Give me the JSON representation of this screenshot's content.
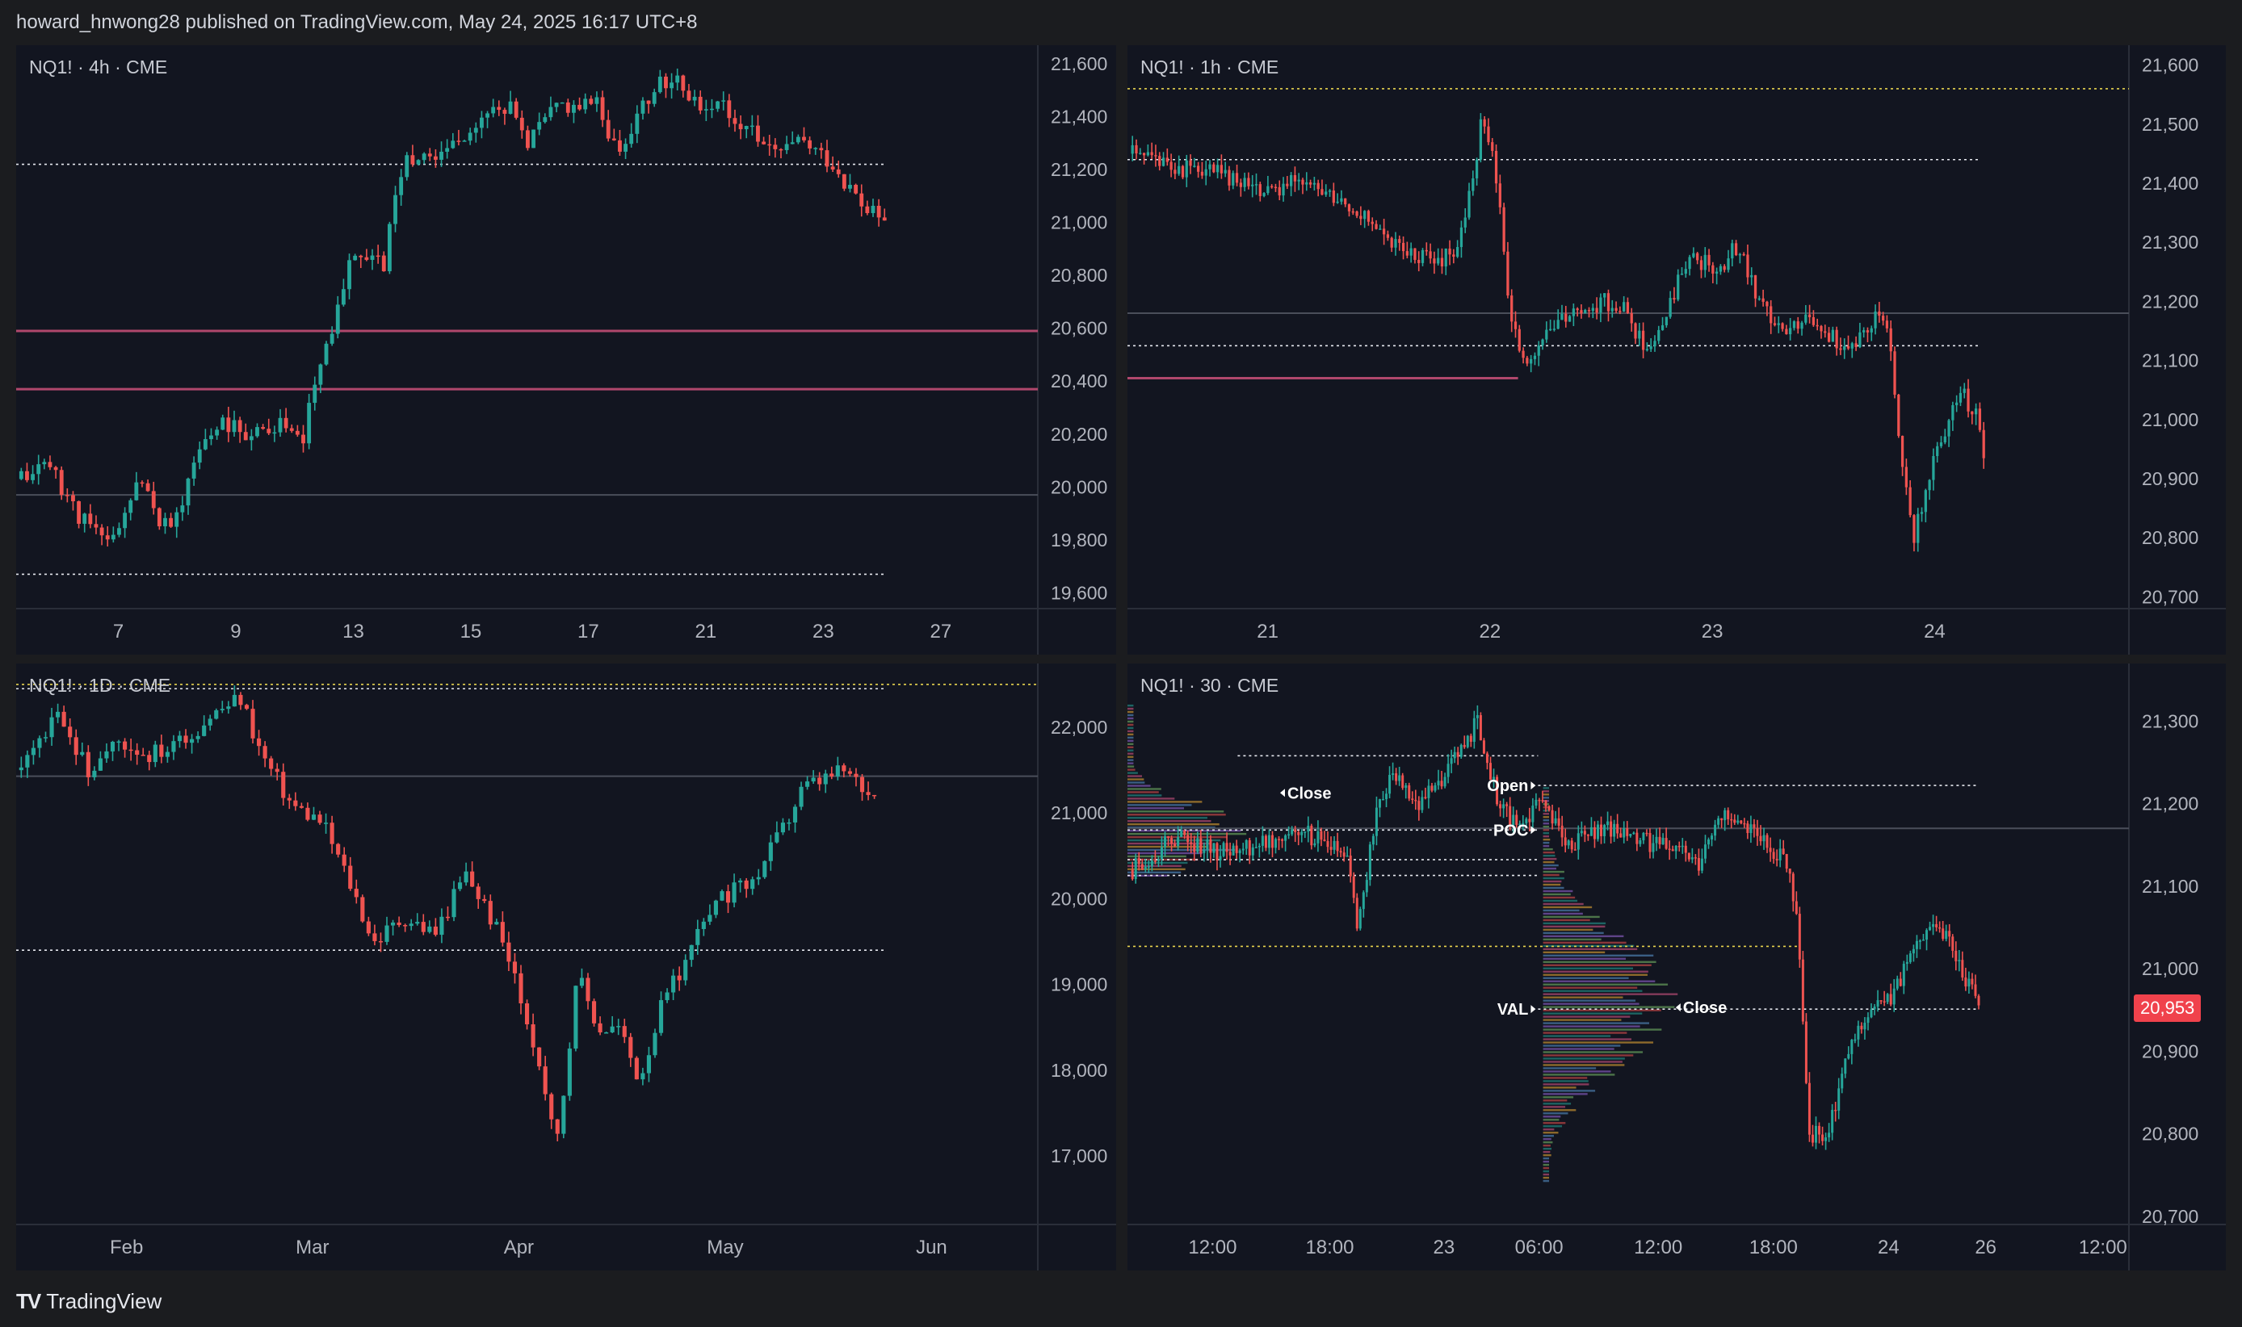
{
  "header": {
    "publish_info": "howard_hnwong28 published on TradingView.com, May 24, 2025 16:17 UTC+8"
  },
  "footer": {
    "brand": "TradingView"
  },
  "colors": {
    "up": "#26a69a",
    "down": "#ef5350",
    "background": "#121520",
    "grid_line": "#2a2e39",
    "dotted_white": "#e6e8ee",
    "dotted_yellow": "#e8d44d",
    "level_pink": "#b0476c",
    "value_tag": "#f0424c"
  },
  "panels": [
    {
      "title": "NQ1! · 4h · CME",
      "y_ticks": [
        "21,600",
        "21,400",
        "21,200",
        "21,000",
        "20,800",
        "20,600",
        "20,400",
        "20,200",
        "20,000",
        "19,800",
        "19,600"
      ],
      "x_ticks": [
        "7",
        "9",
        "13",
        "15",
        "17",
        "21",
        "23",
        "27"
      ]
    },
    {
      "title": "NQ1! · 1h · CME",
      "y_ticks": [
        "21,600",
        "21,500",
        "21,400",
        "21,300",
        "21,200",
        "21,100",
        "21,000",
        "20,900",
        "20,800",
        "20,700"
      ],
      "x_ticks": [
        "21",
        "22",
        "23",
        "24"
      ]
    },
    {
      "title": "NQ1! · 1D · CME",
      "y_ticks": [
        "22,000",
        "21,000",
        "20,000",
        "19,000",
        "18,000",
        "17,000"
      ],
      "x_ticks": [
        "Feb",
        "Mar",
        "Apr",
        "May",
        "Jun"
      ]
    },
    {
      "title": "NQ1! · 30 · CME",
      "y_ticks": [
        "21,300",
        "21,200",
        "21,100",
        "21,000",
        "20,900",
        "20,800",
        "20,700"
      ],
      "x_ticks": [
        "12:00",
        "18:00",
        "23",
        "06:00",
        "12:00",
        "18:00",
        "24",
        "26",
        "12:00"
      ],
      "profile_labels": {
        "close_1": "Close",
        "open": "Open",
        "poc": "POC",
        "val": "VAL",
        "close_2": "Close"
      },
      "last_price": "20,953"
    }
  ],
  "chart_data": [
    {
      "type": "candlestick",
      "title": "NQ1! · 4h · CME",
      "ylim": [
        19540,
        21640
      ],
      "xlim": [
        0,
        100
      ],
      "x_ticks": [
        {
          "label": "7",
          "x": 10
        },
        {
          "label": "9",
          "x": 21.5
        },
        {
          "label": "13",
          "x": 33
        },
        {
          "label": "15",
          "x": 44.5
        },
        {
          "label": "17",
          "x": 56
        },
        {
          "label": "21",
          "x": 67.5
        },
        {
          "label": "23",
          "x": 79
        },
        {
          "label": "27",
          "x": 90.5
        }
      ],
      "y_ticks": [
        21600,
        21400,
        21200,
        21000,
        20800,
        20600,
        20400,
        20200,
        20000,
        19800,
        19600
      ],
      "levels": [
        {
          "value": 21220,
          "style": "dotted-white",
          "x_from": 0,
          "x_to": 85
        },
        {
          "value": 20590,
          "style": "solid-pink",
          "x_from": 0,
          "x_to": 100
        },
        {
          "value": 20370,
          "style": "solid-pink",
          "x_from": 0,
          "x_to": 100
        },
        {
          "value": 19970,
          "style": "solid-grey",
          "x_from": 0,
          "x_to": 100
        },
        {
          "value": 19670,
          "style": "dotted-white",
          "x_from": 0,
          "x_to": 85
        }
      ],
      "anchors": [
        [
          0.5,
          20030
        ],
        [
          3,
          20100
        ],
        [
          6,
          19900
        ],
        [
          9,
          19780
        ],
        [
          12,
          20020
        ],
        [
          15,
          19820
        ],
        [
          18,
          20150
        ],
        [
          20,
          20250
        ],
        [
          23,
          20200
        ],
        [
          26,
          20250
        ],
        [
          28,
          20150
        ],
        [
          29,
          20380
        ],
        [
          31,
          20620
        ],
        [
          33,
          20900
        ],
        [
          36,
          20850
        ],
        [
          38,
          21250
        ],
        [
          41,
          21250
        ],
        [
          44,
          21350
        ],
        [
          48,
          21450
        ],
        [
          50,
          21300
        ],
        [
          53,
          21450
        ],
        [
          57,
          21450
        ],
        [
          59,
          21250
        ],
        [
          61,
          21450
        ],
        [
          64,
          21550
        ],
        [
          67,
          21450
        ],
        [
          69,
          21450
        ],
        [
          72,
          21350
        ],
        [
          74,
          21250
        ],
        [
          77,
          21300
        ],
        [
          80,
          21220
        ],
        [
          83,
          21050
        ],
        [
          85,
          21000
        ]
      ],
      "seed": 11
    },
    {
      "type": "candlestick",
      "title": "NQ1! · 1h · CME",
      "ylim": [
        20680,
        21620
      ],
      "xlim": [
        0,
        100
      ],
      "x_ticks": [
        {
          "label": "21",
          "x": 14
        },
        {
          "label": "22",
          "x": 36.2
        },
        {
          "label": "23",
          "x": 58.4
        },
        {
          "label": "24",
          "x": 80.6
        }
      ],
      "y_ticks": [
        21600,
        21500,
        21400,
        21300,
        21200,
        21100,
        21000,
        20900,
        20800,
        20700
      ],
      "levels": [
        {
          "value": 21560,
          "style": "dotted-yellow",
          "x_from": 0,
          "x_to": 100
        },
        {
          "value": 21440,
          "style": "dotted-white",
          "x_from": 0,
          "x_to": 85
        },
        {
          "value": 21180,
          "style": "solid-grey",
          "x_from": 0,
          "x_to": 100
        },
        {
          "value": 21125,
          "style": "dotted-white",
          "x_from": 0,
          "x_to": 85
        },
        {
          "value": 21070,
          "style": "solid-pink",
          "x_from": 0,
          "x_to": 39
        }
      ],
      "anchors": [
        [
          0.5,
          21450
        ],
        [
          4,
          21430
        ],
        [
          8,
          21420
        ],
        [
          12,
          21400
        ],
        [
          15,
          21380
        ],
        [
          17,
          21420
        ],
        [
          20,
          21380
        ],
        [
          23,
          21360
        ],
        [
          26,
          21300
        ],
        [
          29,
          21280
        ],
        [
          31,
          21260
        ],
        [
          33,
          21300
        ],
        [
          34.5,
          21400
        ],
        [
          35.5,
          21520
        ],
        [
          37,
          21400
        ],
        [
          38,
          21200
        ],
        [
          39.5,
          21100
        ],
        [
          42,
          21150
        ],
        [
          45,
          21180
        ],
        [
          48,
          21200
        ],
        [
          50,
          21180
        ],
        [
          52,
          21100
        ],
        [
          53.5,
          21160
        ],
        [
          56,
          21280
        ],
        [
          59,
          21250
        ],
        [
          61,
          21300
        ],
        [
          63,
          21200
        ],
        [
          66,
          21150
        ],
        [
          68,
          21170
        ],
        [
          70,
          21140
        ],
        [
          72,
          21120
        ],
        [
          74,
          21150
        ],
        [
          75,
          21180
        ],
        [
          76,
          21160
        ],
        [
          77.5,
          20900
        ],
        [
          78.5,
          20800
        ],
        [
          80,
          20900
        ],
        [
          82,
          21000
        ],
        [
          83,
          21050
        ],
        [
          85,
          21000
        ],
        [
          85.5,
          20950
        ]
      ],
      "seed": 23
    },
    {
      "type": "candlestick",
      "title": "NQ1! · 1D · CME",
      "ylim": [
        16200,
        22650
      ],
      "xlim": [
        0,
        100
      ],
      "x_ticks": [
        {
          "label": "Feb",
          "x": 10.8
        },
        {
          "label": "Mar",
          "x": 29
        },
        {
          "label": "Apr",
          "x": 49.2
        },
        {
          "label": "May",
          "x": 69.4
        },
        {
          "label": "Jun",
          "x": 89.6
        }
      ],
      "y_ticks": [
        22000,
        21000,
        20000,
        19000,
        18000,
        17000
      ],
      "levels": [
        {
          "value": 22500,
          "style": "dotted-yellow",
          "x_from": 0,
          "x_to": 100
        },
        {
          "value": 22450,
          "style": "dotted-white",
          "x_from": 0,
          "x_to": 85
        },
        {
          "value": 21430,
          "style": "solid-grey",
          "x_from": 0,
          "x_to": 100
        },
        {
          "value": 19400,
          "style": "dotted-white",
          "x_from": 0,
          "x_to": 85
        }
      ],
      "anchors": [
        [
          0.5,
          21500
        ],
        [
          4,
          22100
        ],
        [
          7,
          21500
        ],
        [
          10,
          21850
        ],
        [
          13,
          21700
        ],
        [
          16,
          21800
        ],
        [
          19,
          22150
        ],
        [
          22,
          22350
        ],
        [
          24,
          21700
        ],
        [
          27,
          21100
        ],
        [
          30,
          20900
        ],
        [
          33,
          20100
        ],
        [
          35,
          19500
        ],
        [
          38,
          19800
        ],
        [
          41,
          19600
        ],
        [
          44,
          20300
        ],
        [
          46,
          19900
        ],
        [
          48,
          19400
        ],
        [
          51,
          18200
        ],
        [
          53,
          17200
        ],
        [
          55,
          19100
        ],
        [
          57,
          18500
        ],
        [
          59,
          18500
        ],
        [
          61,
          17900
        ],
        [
          63,
          18700
        ],
        [
          66,
          19400
        ],
        [
          69,
          20000
        ],
        [
          72,
          20200
        ],
        [
          75,
          20800
        ],
        [
          77,
          21300
        ],
        [
          79,
          21400
        ],
        [
          81,
          21500
        ],
        [
          83,
          21300
        ],
        [
          84,
          21100
        ]
      ],
      "seed": 37
    },
    {
      "type": "candlestick",
      "title": "NQ1! · 30 · CME",
      "ylim": [
        20690,
        21360
      ],
      "xlim": [
        0,
        100
      ],
      "x_ticks": [
        {
          "label": "12:00",
          "x": 8.5
        },
        {
          "label": "18:00",
          "x": 20.2
        },
        {
          "label": "23",
          "x": 31.6
        },
        {
          "label": "06:00",
          "x": 41.1
        },
        {
          "label": "12:00",
          "x": 53
        },
        {
          "label": "18:00",
          "x": 64.5
        },
        {
          "label": "24",
          "x": 76
        },
        {
          "label": "26",
          "x": 85.7
        },
        {
          "label": "12:00",
          "x": 97.4
        }
      ],
      "y_ticks": [
        21300,
        21200,
        21100,
        21000,
        20900,
        20800,
        20700
      ],
      "levels": [
        {
          "value": 21258,
          "style": "dotted-white",
          "x_from": 11,
          "x_to": 41
        },
        {
          "value": 21222,
          "style": "dotted-white",
          "x_from": 41,
          "x_to": 85
        },
        {
          "value": 21170,
          "style": "solid-grey",
          "x_from": 0,
          "x_to": 100
        },
        {
          "value": 21168,
          "style": "dotted-white",
          "x_from": 0,
          "x_to": 41
        },
        {
          "value": 21132,
          "style": "dotted-white",
          "x_from": 0,
          "x_to": 41
        },
        {
          "value": 21113,
          "style": "dotted-white",
          "x_from": 0,
          "x_to": 41
        },
        {
          "value": 21027,
          "style": "dotted-yellow",
          "x_from": 0,
          "x_to": 67
        },
        {
          "value": 20951,
          "style": "dotted-white",
          "x_from": 41,
          "x_to": 85
        }
      ],
      "profiles": [
        {
          "x_start": 0,
          "y_top": 21320,
          "y_bot": 21110,
          "max_width": 14,
          "poc": 21165
        },
        {
          "x_start": 41.5,
          "y_top": 21220,
          "y_bot": 20740,
          "max_width": 14,
          "poc": 20965
        }
      ],
      "profile_markers": [
        {
          "label": "Close",
          "x": 15,
          "value": 21213,
          "side": "left"
        },
        {
          "label": "Open",
          "x": 41,
          "value": 21222,
          "side": "right"
        },
        {
          "label": "POC",
          "x": 41,
          "value": 21168,
          "side": "right"
        },
        {
          "label": "VAL",
          "x": 41,
          "value": 20951,
          "side": "right"
        },
        {
          "label": "Close",
          "x": 54.5,
          "value": 20953,
          "side": "left"
        }
      ],
      "anchors": [
        [
          0.5,
          21120
        ],
        [
          5,
          21160
        ],
        [
          9,
          21140
        ],
        [
          13,
          21150
        ],
        [
          17,
          21170
        ],
        [
          20,
          21150
        ],
        [
          22,
          21130
        ],
        [
          23,
          21050
        ],
        [
          25,
          21200
        ],
        [
          27,
          21240
        ],
        [
          29,
          21200
        ],
        [
          31,
          21220
        ],
        [
          33,
          21260
        ],
        [
          35,
          21300
        ],
        [
          37,
          21200
        ],
        [
          39,
          21170
        ],
        [
          41,
          21200
        ],
        [
          44,
          21150
        ],
        [
          47,
          21170
        ],
        [
          50,
          21160
        ],
        [
          53,
          21150
        ],
        [
          55,
          21150
        ],
        [
          57,
          21120
        ],
        [
          59,
          21190
        ],
        [
          61,
          21170
        ],
        [
          63,
          21160
        ],
        [
          66,
          21130
        ],
        [
          67,
          21050
        ],
        [
          68,
          20800
        ],
        [
          70,
          20800
        ],
        [
          72,
          20900
        ],
        [
          74,
          20950
        ],
        [
          76,
          20960
        ],
        [
          78,
          21010
        ],
        [
          80,
          21060
        ],
        [
          82,
          21040
        ],
        [
          84,
          20980
        ],
        [
          85,
          20953
        ]
      ],
      "seed": 53
    }
  ]
}
